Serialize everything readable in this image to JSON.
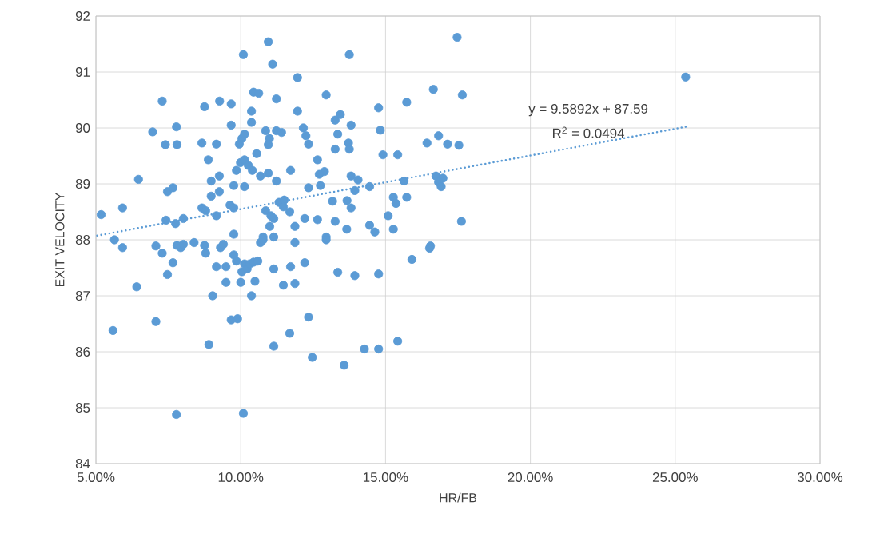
{
  "chart_data": {
    "type": "scatter",
    "xlabel": "HR/FB",
    "ylabel": "EXIT VELOCITY",
    "xlim": [
      0.05,
      0.3
    ],
    "ylim": [
      84,
      92
    ],
    "xticks": [
      {
        "value": 0.05,
        "label": "5.00%"
      },
      {
        "value": 0.1,
        "label": "10.00%"
      },
      {
        "value": 0.15,
        "label": "15.00%"
      },
      {
        "value": 0.2,
        "label": "20.00%"
      },
      {
        "value": 0.25,
        "label": "25.00%"
      },
      {
        "value": 0.3,
        "label": "30.00%"
      }
    ],
    "yticks": [
      84,
      85,
      86,
      87,
      88,
      89,
      90,
      91,
      92
    ],
    "grid": true,
    "marker": "circle",
    "annotations": [
      "y = 9.5892x + 87.59",
      "R$^{2}$ = 0.0494"
    ],
    "series": [
      {
        "color": "#5b9bd5",
        "x": [
          0.0518,
          0.0592,
          0.0647,
          0.0696,
          0.0729,
          0.074,
          0.0778,
          0.078,
          0.0747,
          0.0766,
          0.0742,
          0.0775,
          0.0802,
          0.0866,
          0.0875,
          0.0888,
          0.0916,
          0.0927,
          0.0967,
          0.0967,
          0.0898,
          0.0926,
          0.0898,
          0.0926,
          0.0866,
          0.0879,
          0.0916,
          0.0963,
          0.0976,
          0.0976,
          0.0976,
          0.1013,
          0.1009,
          0.0995,
          0.1004,
          0.1013,
          0.0985,
          0.0999,
          0.1013,
          0.1026,
          0.104,
          0.1037,
          0.1037,
          0.1044,
          0.1062,
          0.1055,
          0.1068,
          0.1095,
          0.111,
          0.1123,
          0.1086,
          0.1099,
          0.1095,
          0.1123,
          0.1141,
          0.1095,
          0.1123,
          0.1172,
          0.1196,
          0.1196,
          0.1086,
          0.1104,
          0.1114,
          0.1132,
          0.115,
          0.1147,
          0.1169,
          0.11,
          0.1077,
          0.1114,
          0.1187,
          0.1187,
          0.0564,
          0.0592,
          0.0641,
          0.0559,
          0.0707,
          0.0729,
          0.0747,
          0.0766,
          0.0707,
          0.078,
          0.0793,
          0.0802,
          0.0839,
          0.0875,
          0.0879,
          0.0778,
          0.089,
          0.0903,
          0.0916,
          0.093,
          0.094,
          0.0949,
          0.0949,
          0.0976,
          0.0985,
          0.1004,
          0.1,
          0.1013,
          0.1022,
          0.1031,
          0.1044,
          0.1059,
          0.1049,
          0.1037,
          0.0967,
          0.0989,
          0.1009,
          0.1068,
          0.1077,
          0.1114,
          0.1114,
          0.1147,
          0.1187,
          0.1172,
          0.1169,
          0.1747,
          0.1375,
          0.1295,
          0.1573,
          0.1665,
          0.1765,
          0.1326,
          0.1344,
          0.1476,
          0.1381,
          0.1482,
          0.1216,
          0.1225,
          0.1234,
          0.1335,
          0.1326,
          0.1372,
          0.1375,
          0.1643,
          0.1683,
          0.1714,
          0.1753,
          0.1491,
          0.1542,
          0.1265,
          0.1289,
          0.1271,
          0.1234,
          0.1275,
          0.1381,
          0.1405,
          0.1445,
          0.1394,
          0.1564,
          0.1674,
          0.1698,
          0.1683,
          0.1692,
          0.1317,
          0.1367,
          0.1527,
          0.1536,
          0.1573,
          0.1381,
          0.1509,
          0.1221,
          0.1265,
          0.1326,
          0.1445,
          0.1463,
          0.1366,
          0.1527,
          0.1762,
          0.1295,
          0.1655,
          0.1295,
          0.1652,
          0.1591,
          0.1221,
          0.1335,
          0.1394,
          0.1476,
          0.1234,
          0.1542,
          0.1427,
          0.1476,
          0.1247,
          0.1357,
          0.2536
        ],
        "values": [
          88.45,
          88.57,
          89.08,
          89.93,
          90.48,
          89.7,
          90.02,
          89.7,
          88.86,
          88.93,
          88.35,
          88.29,
          88.38,
          89.73,
          90.38,
          89.43,
          89.71,
          90.48,
          90.43,
          90.05,
          89.05,
          89.14,
          88.78,
          88.86,
          88.57,
          88.52,
          88.43,
          88.62,
          88.57,
          88.97,
          88.1,
          88.95,
          91.31,
          89.71,
          89.81,
          89.89,
          89.24,
          89.38,
          89.43,
          89.33,
          89.24,
          90.1,
          90.3,
          90.64,
          90.62,
          89.54,
          89.14,
          91.54,
          91.14,
          90.52,
          89.95,
          89.81,
          89.7,
          89.95,
          89.92,
          89.19,
          89.05,
          89.24,
          90.9,
          90.3,
          88.52,
          88.43,
          88.38,
          88.67,
          88.71,
          88.59,
          88.5,
          88.24,
          88.05,
          88.05,
          88.24,
          87.95,
          88.0,
          87.86,
          87.16,
          86.38,
          87.89,
          87.76,
          87.38,
          87.59,
          86.54,
          87.9,
          87.86,
          87.92,
          87.95,
          87.9,
          87.76,
          84.88,
          86.13,
          87.0,
          87.52,
          87.86,
          87.92,
          87.52,
          87.24,
          87.73,
          87.62,
          87.43,
          87.24,
          87.57,
          87.48,
          87.57,
          87.6,
          87.62,
          87.26,
          87.0,
          86.57,
          86.59,
          84.9,
          87.95,
          88.0,
          87.48,
          86.1,
          87.19,
          87.22,
          87.52,
          86.33,
          91.62,
          91.31,
          90.59,
          90.46,
          90.69,
          90.59,
          90.14,
          90.24,
          90.36,
          90.05,
          89.96,
          90.0,
          89.86,
          89.71,
          89.89,
          89.62,
          89.73,
          89.62,
          89.73,
          89.86,
          89.71,
          89.69,
          89.52,
          89.52,
          89.43,
          89.22,
          89.17,
          88.93,
          88.97,
          89.14,
          89.07,
          88.95,
          88.88,
          89.05,
          89.14,
          89.1,
          89.03,
          88.95,
          88.69,
          88.7,
          88.76,
          88.65,
          88.76,
          88.57,
          88.43,
          88.38,
          88.36,
          88.33,
          88.26,
          88.14,
          88.19,
          88.19,
          88.33,
          88.05,
          87.89,
          88.0,
          87.85,
          87.65,
          87.59,
          87.42,
          87.36,
          87.39,
          86.62,
          86.19,
          86.05,
          86.05,
          85.9,
          85.76,
          90.91
        ]
      },
      {
        "type": "line",
        "color": "#5b9bd5",
        "line_style": "dotted",
        "marker": "none",
        "x": [
          0.05,
          0.2536
        ],
        "values": [
          88.07,
          90.02
        ]
      }
    ]
  }
}
